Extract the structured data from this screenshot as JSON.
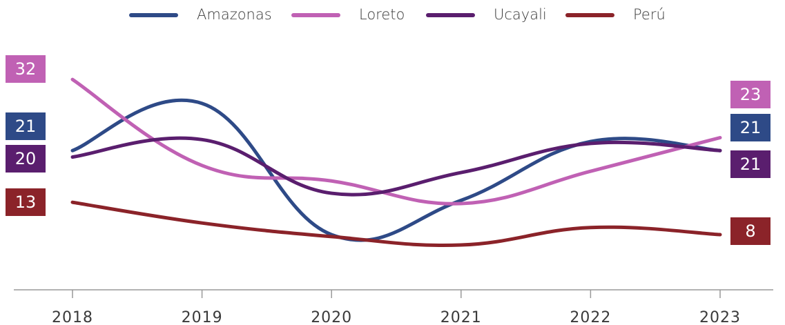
{
  "chart_data": {
    "type": "line",
    "categories": [
      "2018",
      "2019",
      "2020",
      "2021",
      "2022",
      "2023"
    ],
    "series": [
      {
        "name": "Amazonas",
        "color": "#2e4a87",
        "values": [
          21,
          28.3,
          8,
          13.3,
          22.4,
          21
        ]
      },
      {
        "name": "Loreto",
        "color": "#c061b4",
        "values": [
          32,
          18.7,
          16.3,
          12.8,
          17.8,
          23
        ]
      },
      {
        "name": "Ucayali",
        "color": "#5a1e6e",
        "values": [
          20,
          22.7,
          14.4,
          17.6,
          22.1,
          21
        ]
      },
      {
        "name": "Perú",
        "color": "#8b2329",
        "values": [
          13,
          9.8,
          7.7,
          6.4,
          9.1,
          8
        ]
      }
    ],
    "legend": "top"
  }
}
